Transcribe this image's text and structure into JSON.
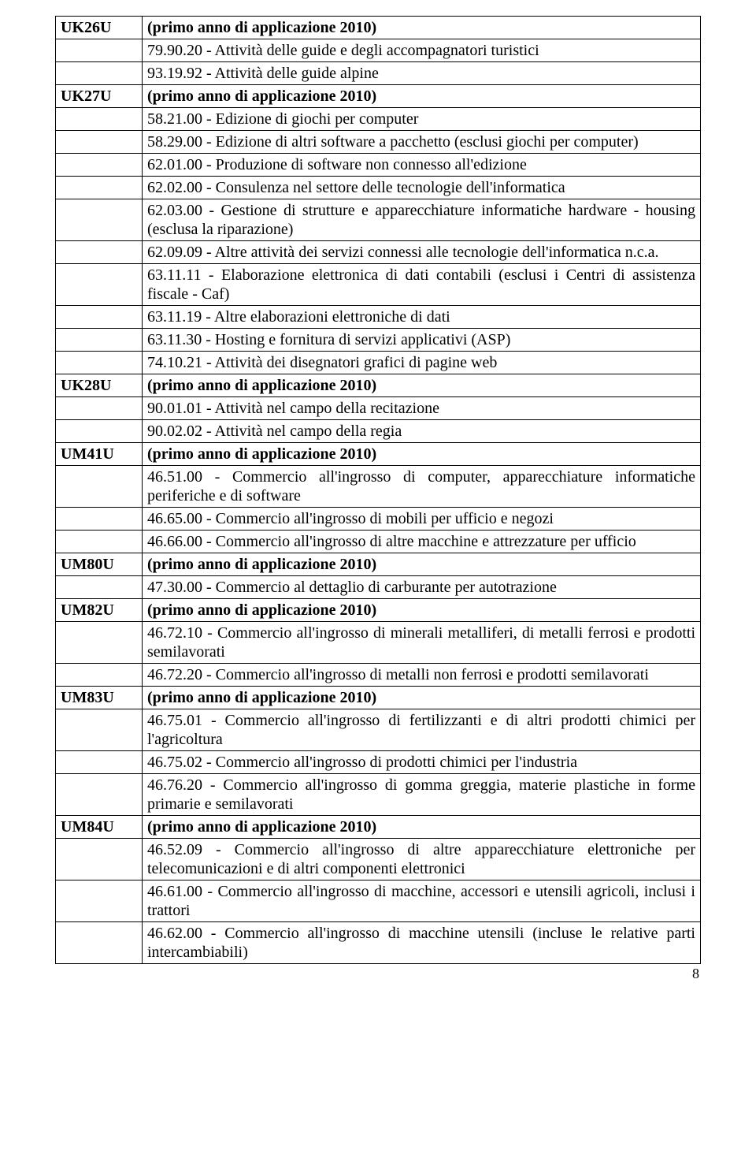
{
  "pageNumber": "8",
  "rows": [
    {
      "code": "UK26U",
      "desc": "(primo anno di applicazione 2010)",
      "codeBold": true,
      "descBold": true
    },
    {
      "code": "",
      "desc": "79.90.20 - Attività delle guide e degli accompagnatori turistici"
    },
    {
      "code": "",
      "desc": "93.19.92 - Attività delle guide alpine"
    },
    {
      "code": "UK27U",
      "desc": "(primo anno di applicazione 2010)",
      "codeBold": true,
      "descBold": true
    },
    {
      "code": "",
      "desc": "58.21.00 - Edizione di giochi per computer"
    },
    {
      "code": "",
      "desc": "58.29.00 - Edizione di altri software a pacchetto (esclusi giochi per computer)"
    },
    {
      "code": "",
      "desc": "62.01.00 - Produzione di software non connesso all'edizione"
    },
    {
      "code": "",
      "desc": "62.02.00 - Consulenza nel settore delle tecnologie dell'informatica"
    },
    {
      "code": "",
      "desc": "62.03.00 - Gestione di strutture e apparecchiature informatiche hardware - housing (esclusa la riparazione)"
    },
    {
      "code": "",
      "desc": "62.09.09 - Altre attività dei servizi connessi alle tecnologie dell'informatica n.c.a."
    },
    {
      "code": "",
      "desc": "63.11.11 - Elaborazione elettronica di dati contabili (esclusi i Centri di assistenza fiscale - Caf)"
    },
    {
      "code": "",
      "desc": "63.11.19 - Altre elaborazioni elettroniche di dati"
    },
    {
      "code": "",
      "desc": "63.11.30 - Hosting e fornitura di servizi applicativi (ASP)"
    },
    {
      "code": "",
      "desc": "74.10.21 - Attività dei disegnatori grafici di pagine web"
    },
    {
      "code": "UK28U",
      "desc": "(primo anno di applicazione 2010)",
      "codeBold": true,
      "descBold": true
    },
    {
      "code": "",
      "desc": "90.01.01 - Attività nel campo della recitazione"
    },
    {
      "code": "",
      "desc": "90.02.02 - Attività nel campo della regia"
    },
    {
      "code": "UM41U",
      "desc": "(primo anno di applicazione 2010)",
      "codeBold": true,
      "descBold": true
    },
    {
      "code": "",
      "desc": "46.51.00 - Commercio all'ingrosso di computer, apparecchiature informatiche periferiche e di software"
    },
    {
      "code": "",
      "desc": "46.65.00 - Commercio all'ingrosso di mobili per ufficio e negozi"
    },
    {
      "code": "",
      "desc": "46.66.00 - Commercio all'ingrosso di altre macchine e attrezzature per ufficio"
    },
    {
      "code": "UM80U",
      "desc": "(primo anno di applicazione 2010)",
      "codeBold": true,
      "descBold": true
    },
    {
      "code": "",
      "desc": "47.30.00 - Commercio al dettaglio di carburante per autotrazione"
    },
    {
      "code": "UM82U",
      "desc": "(primo anno di applicazione 2010)",
      "codeBold": true,
      "descBold": true
    },
    {
      "code": "",
      "desc": "46.72.10 - Commercio all'ingrosso di minerali metalliferi, di metalli ferrosi e prodotti semilavorati"
    },
    {
      "code": "",
      "desc": "46.72.20 - Commercio all'ingrosso di metalli non ferrosi e prodotti semilavorati"
    },
    {
      "code": "UM83U",
      "desc": "(primo anno di applicazione 2010)",
      "codeBold": true,
      "descBold": true
    },
    {
      "code": "",
      "desc": "46.75.01 - Commercio all'ingrosso di fertilizzanti e di altri prodotti chimici per l'agricoltura"
    },
    {
      "code": "",
      "desc": "46.75.02 - Commercio all'ingrosso di prodotti chimici per l'industria"
    },
    {
      "code": "",
      "desc": "46.76.20 - Commercio all'ingrosso di gomma greggia, materie plastiche in forme primarie e semilavorati"
    },
    {
      "code": "UM84U",
      "desc": "(primo anno di applicazione 2010)",
      "codeBold": true,
      "descBold": true
    },
    {
      "code": "",
      "desc": "46.52.09 - Commercio all'ingrosso di altre apparecchiature elettroniche per telecomunicazioni e di altri componenti elettronici"
    },
    {
      "code": "",
      "desc": "46.61.00 - Commercio all'ingrosso di macchine, accessori e utensili agricoli, inclusi i trattori"
    },
    {
      "code": "",
      "desc": "46.62.00 - Commercio all'ingrosso di macchine utensili (incluse le relative parti intercambiabili)"
    }
  ]
}
